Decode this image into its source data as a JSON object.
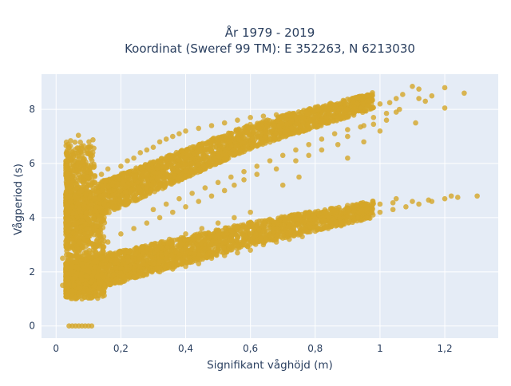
{
  "chart_data": {
    "type": "scatter",
    "title": "År 1979 - 2019",
    "subtitle": "Koordinat (Sweref 99 TM): E 352263, N 6213030",
    "xlabel": "Signifikant våghöjd (m)",
    "ylabel": "Vågperiod (s)",
    "xlim": [
      -0.045,
      1.365
    ],
    "ylim": [
      -0.45,
      9.3
    ],
    "xticks": [
      {
        "value": 0,
        "label": "0"
      },
      {
        "value": 0.2,
        "label": "0,2"
      },
      {
        "value": 0.4,
        "label": "0,4"
      },
      {
        "value": 0.6,
        "label": "0,6"
      },
      {
        "value": 0.8,
        "label": "0,8"
      },
      {
        "value": 1.0,
        "label": "1"
      },
      {
        "value": 1.2,
        "label": "1,2"
      }
    ],
    "yticks": [
      {
        "value": 0,
        "label": "0"
      },
      {
        "value": 2,
        "label": "2"
      },
      {
        "value": 4,
        "label": "4"
      },
      {
        "value": 6,
        "label": "6"
      },
      {
        "value": 8,
        "label": "8"
      }
    ],
    "grid": true,
    "legend": "none",
    "colors": {
      "marker": "#d4a628",
      "plot_bg": "#e5ecf6",
      "grid": "#ffffff",
      "text": "#2a3f5f"
    },
    "series": [
      {
        "values": [
          [
            0.04,
            0
          ],
          [
            0.05,
            0
          ],
          [
            0.06,
            0
          ],
          [
            0.07,
            0
          ],
          [
            0.08,
            0
          ],
          [
            0.09,
            0
          ],
          [
            0.1,
            0
          ],
          [
            0.11,
            0
          ],
          [
            0.02,
            1.5
          ],
          [
            0.03,
            2.1
          ],
          [
            0.02,
            2.5
          ],
          [
            0.03,
            3.0
          ],
          [
            0.04,
            3.6
          ],
          [
            0.05,
            4.4
          ],
          [
            0.06,
            4.8
          ],
          [
            0.05,
            1.1
          ],
          [
            0.06,
            1.05
          ],
          [
            0.08,
            1.0
          ],
          [
            0.1,
            1.05
          ],
          [
            0.12,
            1.1
          ],
          [
            0.14,
            1.2
          ],
          [
            0.15,
            1.4
          ],
          [
            0.08,
            5.0
          ],
          [
            0.1,
            5.2
          ],
          [
            0.1,
            5.5
          ],
          [
            0.12,
            5.3
          ],
          [
            0.14,
            5.6
          ],
          [
            0.16,
            5.8
          ],
          [
            0.18,
            5.5
          ],
          [
            0.2,
            5.9
          ],
          [
            0.22,
            6.1
          ],
          [
            0.24,
            6.2
          ],
          [
            0.26,
            6.4
          ],
          [
            0.28,
            6.5
          ],
          [
            0.3,
            6.6
          ],
          [
            0.32,
            6.8
          ],
          [
            0.34,
            6.9
          ],
          [
            0.36,
            7.0
          ],
          [
            0.38,
            7.1
          ],
          [
            0.4,
            7.2
          ],
          [
            0.44,
            7.3
          ],
          [
            0.48,
            7.4
          ],
          [
            0.52,
            7.5
          ],
          [
            0.56,
            7.6
          ],
          [
            0.6,
            7.7
          ],
          [
            0.64,
            7.75
          ],
          [
            0.68,
            7.8
          ],
          [
            0.72,
            7.85
          ],
          [
            0.76,
            7.9
          ],
          [
            0.8,
            7.95
          ],
          [
            0.84,
            8.0
          ],
          [
            0.88,
            8.05
          ],
          [
            0.92,
            8.1
          ],
          [
            0.96,
            8.15
          ],
          [
            1.0,
            8.2
          ],
          [
            1.03,
            8.25
          ],
          [
            1.05,
            8.4
          ],
          [
            1.07,
            8.55
          ],
          [
            1.1,
            8.85
          ],
          [
            1.12,
            8.75
          ],
          [
            1.14,
            8.3
          ],
          [
            1.16,
            8.5
          ],
          [
            1.2,
            8.8
          ],
          [
            1.26,
            8.6
          ],
          [
            1.2,
            8.05
          ],
          [
            1.11,
            7.5
          ],
          [
            1.06,
            8.0
          ],
          [
            1.02,
            7.85
          ],
          [
            0.98,
            7.7
          ],
          [
            0.95,
            7.4
          ],
          [
            0.9,
            7.0
          ],
          [
            0.87,
            6.7
          ],
          [
            0.82,
            6.5
          ],
          [
            0.78,
            6.3
          ],
          [
            0.74,
            6.1
          ],
          [
            0.68,
            5.8
          ],
          [
            0.62,
            5.6
          ],
          [
            0.58,
            5.4
          ],
          [
            0.55,
            5.2
          ],
          [
            0.52,
            5.0
          ],
          [
            0.48,
            4.8
          ],
          [
            0.44,
            4.6
          ],
          [
            0.4,
            4.4
          ],
          [
            0.36,
            4.2
          ],
          [
            0.32,
            4.0
          ],
          [
            0.28,
            3.8
          ],
          [
            0.24,
            3.6
          ],
          [
            0.2,
            3.4
          ],
          [
            0.16,
            3.1
          ],
          [
            0.12,
            2.9
          ],
          [
            0.1,
            2.6
          ],
          [
            0.08,
            2.3
          ],
          [
            0.2,
            1.6
          ],
          [
            0.24,
            1.8
          ],
          [
            0.28,
            1.9
          ],
          [
            0.32,
            2.0
          ],
          [
            0.36,
            2.1
          ],
          [
            0.4,
            2.2
          ],
          [
            0.44,
            2.3
          ],
          [
            0.48,
            2.5
          ],
          [
            0.52,
            2.6
          ],
          [
            0.56,
            2.7
          ],
          [
            0.6,
            2.8
          ],
          [
            0.64,
            3.0
          ],
          [
            0.68,
            3.1
          ],
          [
            0.72,
            3.2
          ],
          [
            0.76,
            3.3
          ],
          [
            0.8,
            3.5
          ],
          [
            0.84,
            3.6
          ],
          [
            0.88,
            3.7
          ],
          [
            0.92,
            3.9
          ],
          [
            0.96,
            4.0
          ],
          [
            1.0,
            4.2
          ],
          [
            1.04,
            4.3
          ],
          [
            1.08,
            4.4
          ],
          [
            1.12,
            4.5
          ],
          [
            1.16,
            4.6
          ],
          [
            1.2,
            4.7
          ],
          [
            1.3,
            4.8
          ],
          [
            1.24,
            4.75
          ],
          [
            1.1,
            4.6
          ],
          [
            1.04,
            4.55
          ],
          [
            1.0,
            4.5
          ],
          [
            0.96,
            4.35
          ],
          [
            0.92,
            4.25
          ],
          [
            0.88,
            4.15
          ],
          [
            0.84,
            4.05
          ],
          [
            0.8,
            3.95
          ],
          [
            0.76,
            3.85
          ],
          [
            0.72,
            3.7
          ],
          [
            0.68,
            3.6
          ],
          [
            0.64,
            3.5
          ],
          [
            0.6,
            3.4
          ],
          [
            0.56,
            3.25
          ],
          [
            0.52,
            3.1
          ],
          [
            0.48,
            3.0
          ],
          [
            0.44,
            2.85
          ],
          [
            0.4,
            2.7
          ],
          [
            0.36,
            2.55
          ],
          [
            0.32,
            2.4
          ],
          [
            0.28,
            2.25
          ],
          [
            0.24,
            2.1
          ],
          [
            0.2,
            1.95
          ],
          [
            0.16,
            1.7
          ],
          [
            0.12,
            1.5
          ],
          [
            0.1,
            1.3
          ],
          [
            0.07,
            1.2
          ],
          [
            0.05,
            1.3
          ],
          [
            0.3,
            4.3
          ],
          [
            0.34,
            4.5
          ],
          [
            0.38,
            4.7
          ],
          [
            0.42,
            4.9
          ],
          [
            0.46,
            5.1
          ],
          [
            0.5,
            5.3
          ],
          [
            0.54,
            5.5
          ],
          [
            0.58,
            5.7
          ],
          [
            0.62,
            5.9
          ],
          [
            0.66,
            6.1
          ],
          [
            0.7,
            6.3
          ],
          [
            0.74,
            6.5
          ],
          [
            0.78,
            6.7
          ],
          [
            0.82,
            6.9
          ],
          [
            0.86,
            7.1
          ],
          [
            0.9,
            7.25
          ],
          [
            0.94,
            7.35
          ],
          [
            0.98,
            7.45
          ],
          [
            1.02,
            7.6
          ],
          [
            0.66,
            6.9
          ],
          [
            0.7,
            7.0
          ],
          [
            0.26,
            5.0
          ],
          [
            0.3,
            5.3
          ],
          [
            0.34,
            5.6
          ],
          [
            0.38,
            5.9
          ],
          [
            0.42,
            6.2
          ],
          [
            0.46,
            6.5
          ],
          [
            0.5,
            6.8
          ],
          [
            0.54,
            7.0
          ],
          [
            0.58,
            7.2
          ],
          [
            0.22,
            4.6
          ],
          [
            0.18,
            4.3
          ],
          [
            0.14,
            4.0
          ],
          [
            0.12,
            3.6
          ],
          [
            0.1,
            3.3
          ],
          [
            0.9,
            6.2
          ],
          [
            0.95,
            6.8
          ],
          [
            1.0,
            7.2
          ],
          [
            1.05,
            7.9
          ],
          [
            1.12,
            8.4
          ],
          [
            0.75,
            5.5
          ],
          [
            0.7,
            5.2
          ],
          [
            0.6,
            4.2
          ],
          [
            0.55,
            4.0
          ],
          [
            0.5,
            3.8
          ],
          [
            0.45,
            3.6
          ],
          [
            0.4,
            3.4
          ],
          [
            0.35,
            3.2
          ],
          [
            0.3,
            3.0
          ],
          [
            0.7,
            4.0
          ],
          [
            0.75,
            4.1
          ],
          [
            0.85,
            4.3
          ],
          [
            0.95,
            4.5
          ],
          [
            1.05,
            4.7
          ],
          [
            1.15,
            4.65
          ],
          [
            1.22,
            4.8
          ]
        ]
      }
    ]
  }
}
